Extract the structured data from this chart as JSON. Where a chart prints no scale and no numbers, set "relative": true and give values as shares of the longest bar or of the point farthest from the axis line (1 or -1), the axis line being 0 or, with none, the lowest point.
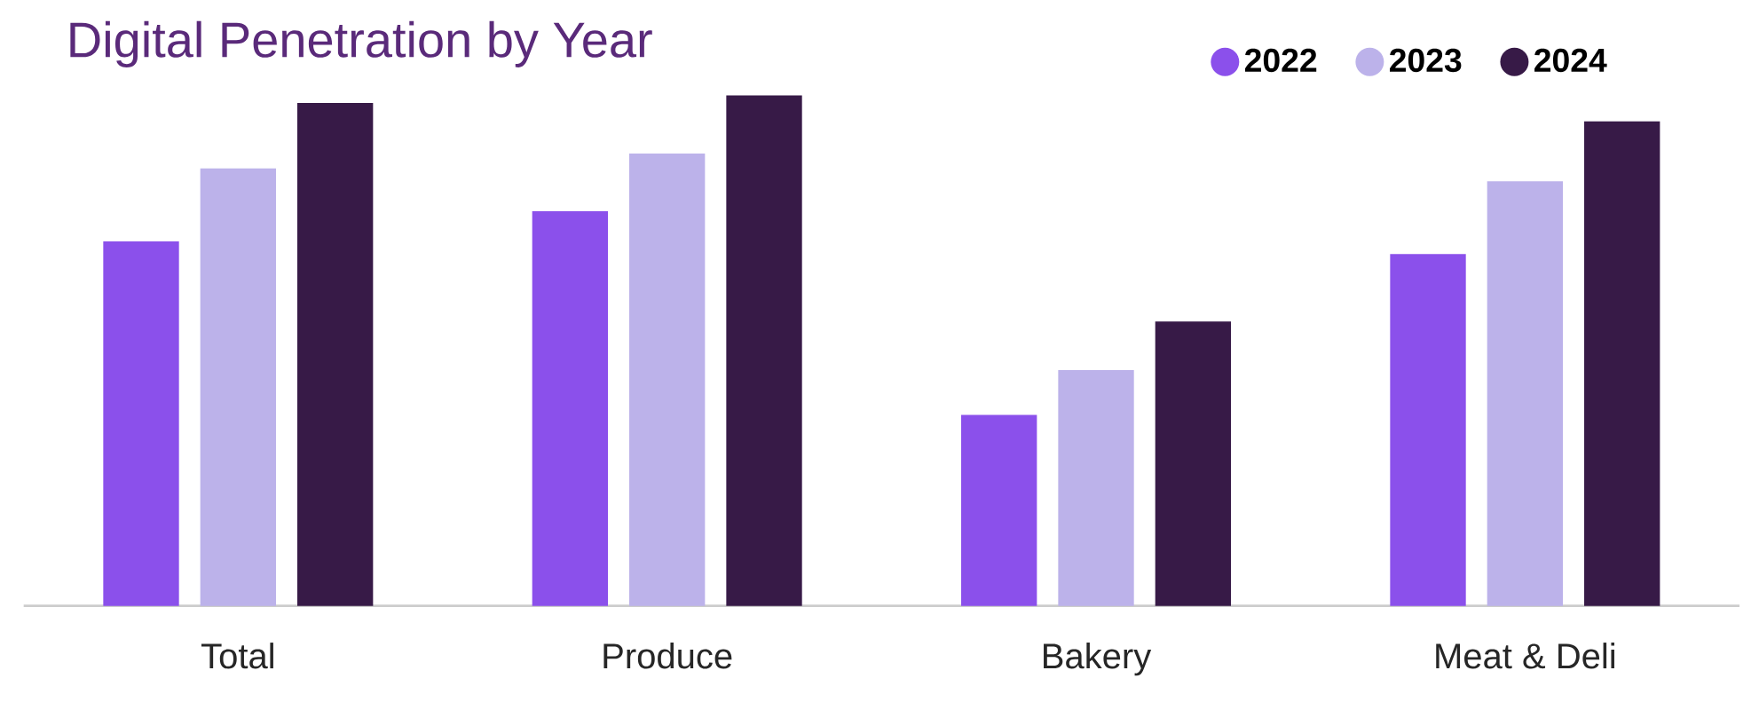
{
  "chart_data": {
    "type": "bar",
    "title": "Digital Penetration by Year",
    "relative": true,
    "legend": "top right",
    "categories": [
      "Total",
      "Produce",
      "Bakery",
      "Meat & Deli"
    ],
    "series": [
      {
        "name": "2022",
        "color": "#8b50eb",
        "values": [
          0.714,
          0.773,
          0.374,
          0.689
        ]
      },
      {
        "name": "2023",
        "color": "#bcb2ea",
        "values": [
          0.857,
          0.886,
          0.462,
          0.832
        ]
      },
      {
        "name": "2024",
        "color": "#371a47",
        "values": [
          0.985,
          1,
          0.557,
          0.949
        ]
      }
    ]
  }
}
